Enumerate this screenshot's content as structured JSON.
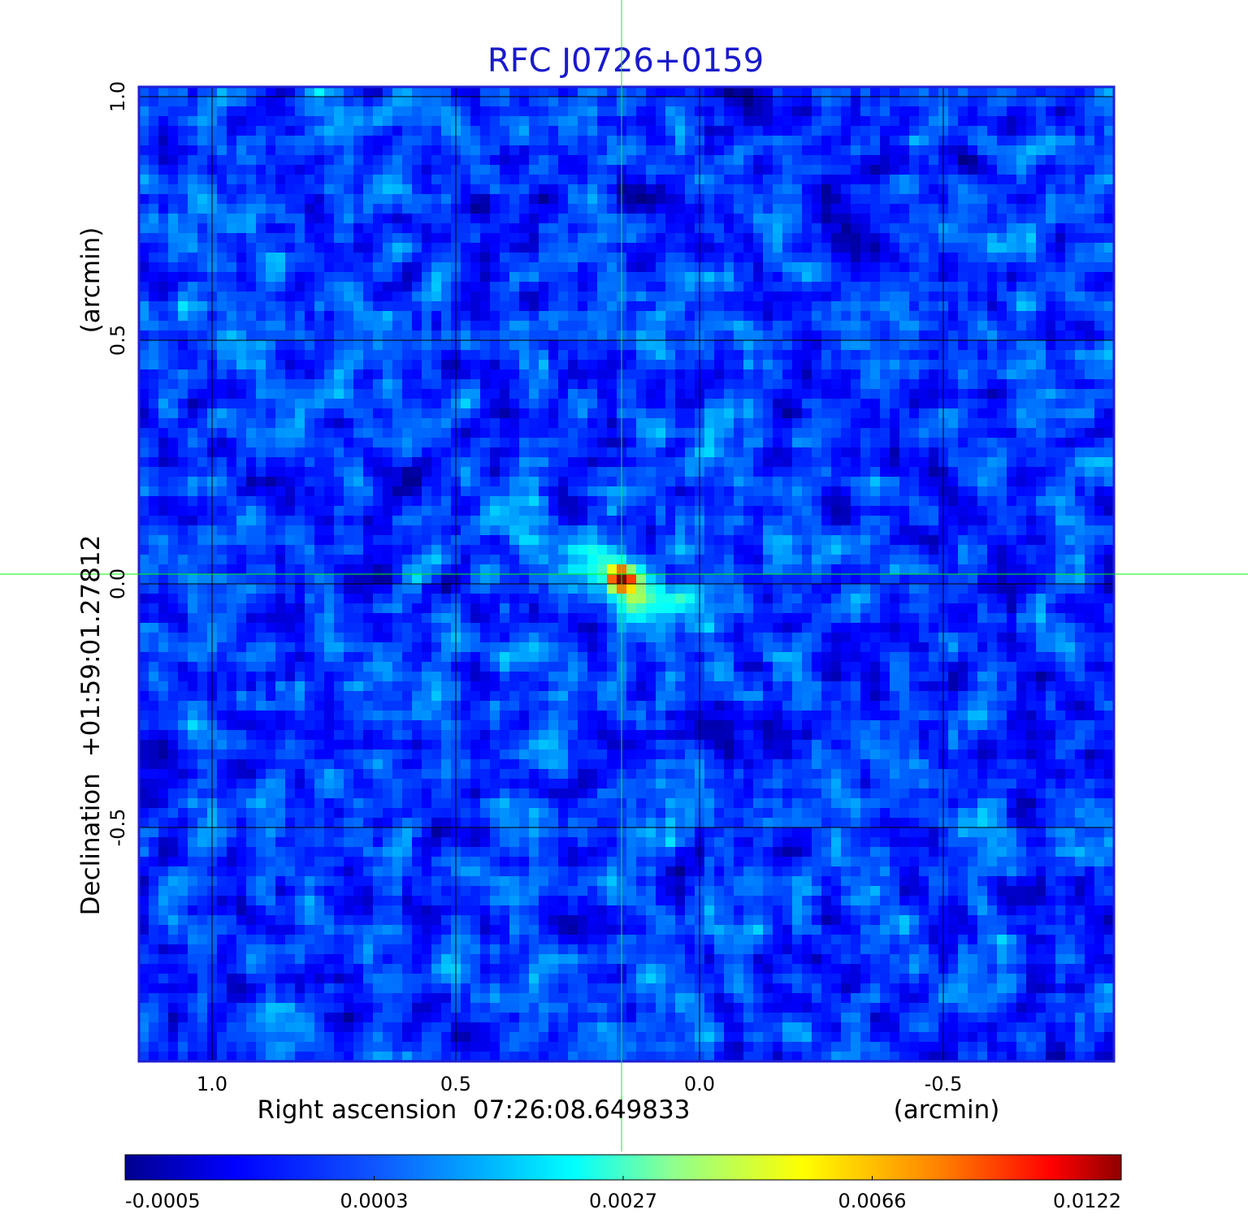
{
  "chart_data": {
    "type": "heatmap",
    "title": "RFC J0726+0159",
    "xlabel": "Right ascension  07:26:08.649833",
    "xunit": "(arcmin)",
    "ylabel": "Declination  +01:59:01.27812",
    "yunit": "(arcmin)",
    "xlim": [
      1.15,
      -0.85
    ],
    "ylim": [
      -0.98,
      1.02
    ],
    "x_ticks": [
      {
        "value": 1.0,
        "label": "1.0"
      },
      {
        "value": 0.5,
        "label": "0.5"
      },
      {
        "value": 0.0,
        "label": "0.0"
      },
      {
        "value": -0.5,
        "label": "-0.5"
      }
    ],
    "y_ticks": [
      {
        "value": 1.0,
        "label": "1.0"
      },
      {
        "value": 0.5,
        "label": "0.5"
      },
      {
        "value": 0.0,
        "label": "0.0"
      },
      {
        "value": -0.5,
        "label": "-0.5"
      }
    ],
    "grid": true,
    "crosshair": {
      "x": 0.16,
      "y": 0.02
    },
    "source": {
      "x": 0.16,
      "y": 0.01,
      "peak": 0.0122
    },
    "colorbar": {
      "colormap": "jet",
      "ticks": [
        "-0.0005",
        "0.0003",
        "0.0027",
        "0.0066",
        "0.0122"
      ],
      "min": -0.0005,
      "max": 0.0122
    }
  },
  "colors": {
    "title": "#1a1acc",
    "frame": "#1f1fd6",
    "grid": "#000000",
    "crosshair": "#00ff00"
  }
}
